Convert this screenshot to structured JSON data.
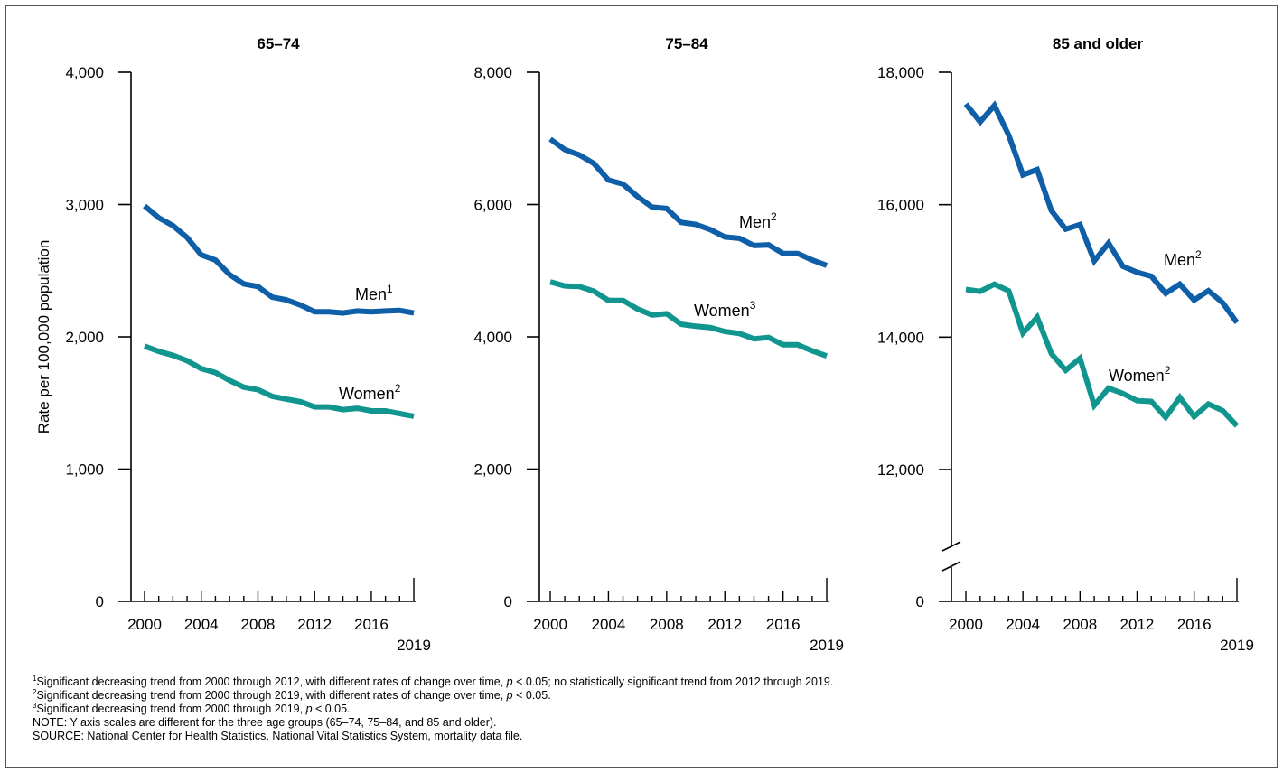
{
  "colors": {
    "men": "#0f5ea8",
    "women": "#10958f",
    "axis": "#000000"
  },
  "chart_data": [
    {
      "type": "line",
      "title": "65–74",
      "ylabel": "Rate per 100,000 population",
      "ylim": [
        0,
        4000
      ],
      "yticks": [
        0,
        1000,
        2000,
        3000,
        4000
      ],
      "ytick_labels": [
        "0",
        "1,000",
        "2,000",
        "3,000",
        "4,000"
      ],
      "axis_break": false,
      "x": [
        2000,
        2001,
        2002,
        2003,
        2004,
        2005,
        2006,
        2007,
        2008,
        2009,
        2010,
        2011,
        2012,
        2013,
        2014,
        2015,
        2016,
        2017,
        2018,
        2019
      ],
      "xtick_labels": [
        "2000",
        "2004",
        "2008",
        "2012",
        "2016",
        "2019"
      ],
      "series": [
        {
          "name": "Men",
          "footnote": "1",
          "values": [
            2990,
            2900,
            2840,
            2750,
            2620,
            2580,
            2470,
            2400,
            2380,
            2300,
            2280,
            2240,
            2190,
            2190,
            2180,
            2195,
            2190,
            2195,
            2200,
            2180
          ]
        },
        {
          "name": "Women",
          "footnote": "2",
          "values": [
            1930,
            1890,
            1860,
            1820,
            1760,
            1730,
            1670,
            1620,
            1600,
            1550,
            1530,
            1510,
            1470,
            1470,
            1450,
            1460,
            1440,
            1440,
            1420,
            1400
          ]
        }
      ]
    },
    {
      "type": "line",
      "title": "75–84",
      "ylim": [
        0,
        8000
      ],
      "yticks": [
        0,
        2000,
        4000,
        6000,
        8000
      ],
      "ytick_labels": [
        "0",
        "2,000",
        "4,000",
        "6,000",
        "8,000"
      ],
      "axis_break": false,
      "x": [
        2000,
        2001,
        2002,
        2003,
        2004,
        2005,
        2006,
        2007,
        2008,
        2009,
        2010,
        2011,
        2012,
        2013,
        2014,
        2015,
        2016,
        2017,
        2018,
        2019
      ],
      "xtick_labels": [
        "2000",
        "2004",
        "2008",
        "2012",
        "2016",
        "2019"
      ],
      "series": [
        {
          "name": "Men",
          "footnote": "2",
          "values": [
            6990,
            6830,
            6750,
            6620,
            6370,
            6310,
            6120,
            5960,
            5940,
            5730,
            5700,
            5620,
            5510,
            5490,
            5380,
            5390,
            5260,
            5260,
            5160,
            5080
          ]
        },
        {
          "name": "Women",
          "footnote": "3",
          "values": [
            4830,
            4770,
            4760,
            4690,
            4550,
            4550,
            4420,
            4330,
            4350,
            4190,
            4160,
            4140,
            4080,
            4050,
            3970,
            3990,
            3880,
            3880,
            3790,
            3710
          ]
        }
      ]
    },
    {
      "type": "line",
      "title": "85 and older",
      "ylim": [
        10000,
        18000
      ],
      "yticks": [
        12000,
        14000,
        16000,
        18000
      ],
      "ytick_labels": [
        "0",
        "12,000",
        "14,000",
        "16,000",
        "18,000"
      ],
      "axis_break": true,
      "x": [
        2000,
        2001,
        2002,
        2003,
        2004,
        2005,
        2006,
        2007,
        2008,
        2009,
        2010,
        2011,
        2012,
        2013,
        2014,
        2015,
        2016,
        2017,
        2018,
        2019
      ],
      "xtick_labels": [
        "2000",
        "2004",
        "2008",
        "2012",
        "2016",
        "2019"
      ],
      "series": [
        {
          "name": "Men",
          "footnote": "2",
          "values": [
            17520,
            17250,
            17500,
            17050,
            16450,
            16530,
            15910,
            15630,
            15700,
            15150,
            15420,
            15070,
            14980,
            14920,
            14660,
            14800,
            14560,
            14700,
            14520,
            14220
          ]
        },
        {
          "name": "Women",
          "footnote": "2",
          "values": [
            14720,
            14690,
            14800,
            14700,
            14060,
            14300,
            13750,
            13500,
            13680,
            12970,
            13230,
            13150,
            13040,
            13030,
            12790,
            13090,
            12800,
            12990,
            12890,
            12660
          ]
        }
      ]
    }
  ],
  "notes": {
    "fn1_mark": "1",
    "fn1_a": "Significant decreasing trend from 2000 through 2012, with different rates of change over time, ",
    "fn1_p": "p",
    "fn1_b": " < 0.05; no statistically significant trend from 2012 through 2019.",
    "fn2_mark": "2",
    "fn2_a": "Significant decreasing trend from 2000 through 2019, with different rates of change over time, ",
    "fn2_p": "p",
    "fn2_b": " < 0.05.",
    "fn3_mark": "3",
    "fn3_a": "Significant decreasing trend from 2000 through 2019, ",
    "fn3_p": "p",
    "fn3_b": " < 0.05.",
    "note": "NOTE: Y axis scales are different for the three age groups (65–74, 75–84, and 85 and older).",
    "source": "SOURCE: National Center for Health Statistics, National Vital Statistics System, mortality data file."
  }
}
